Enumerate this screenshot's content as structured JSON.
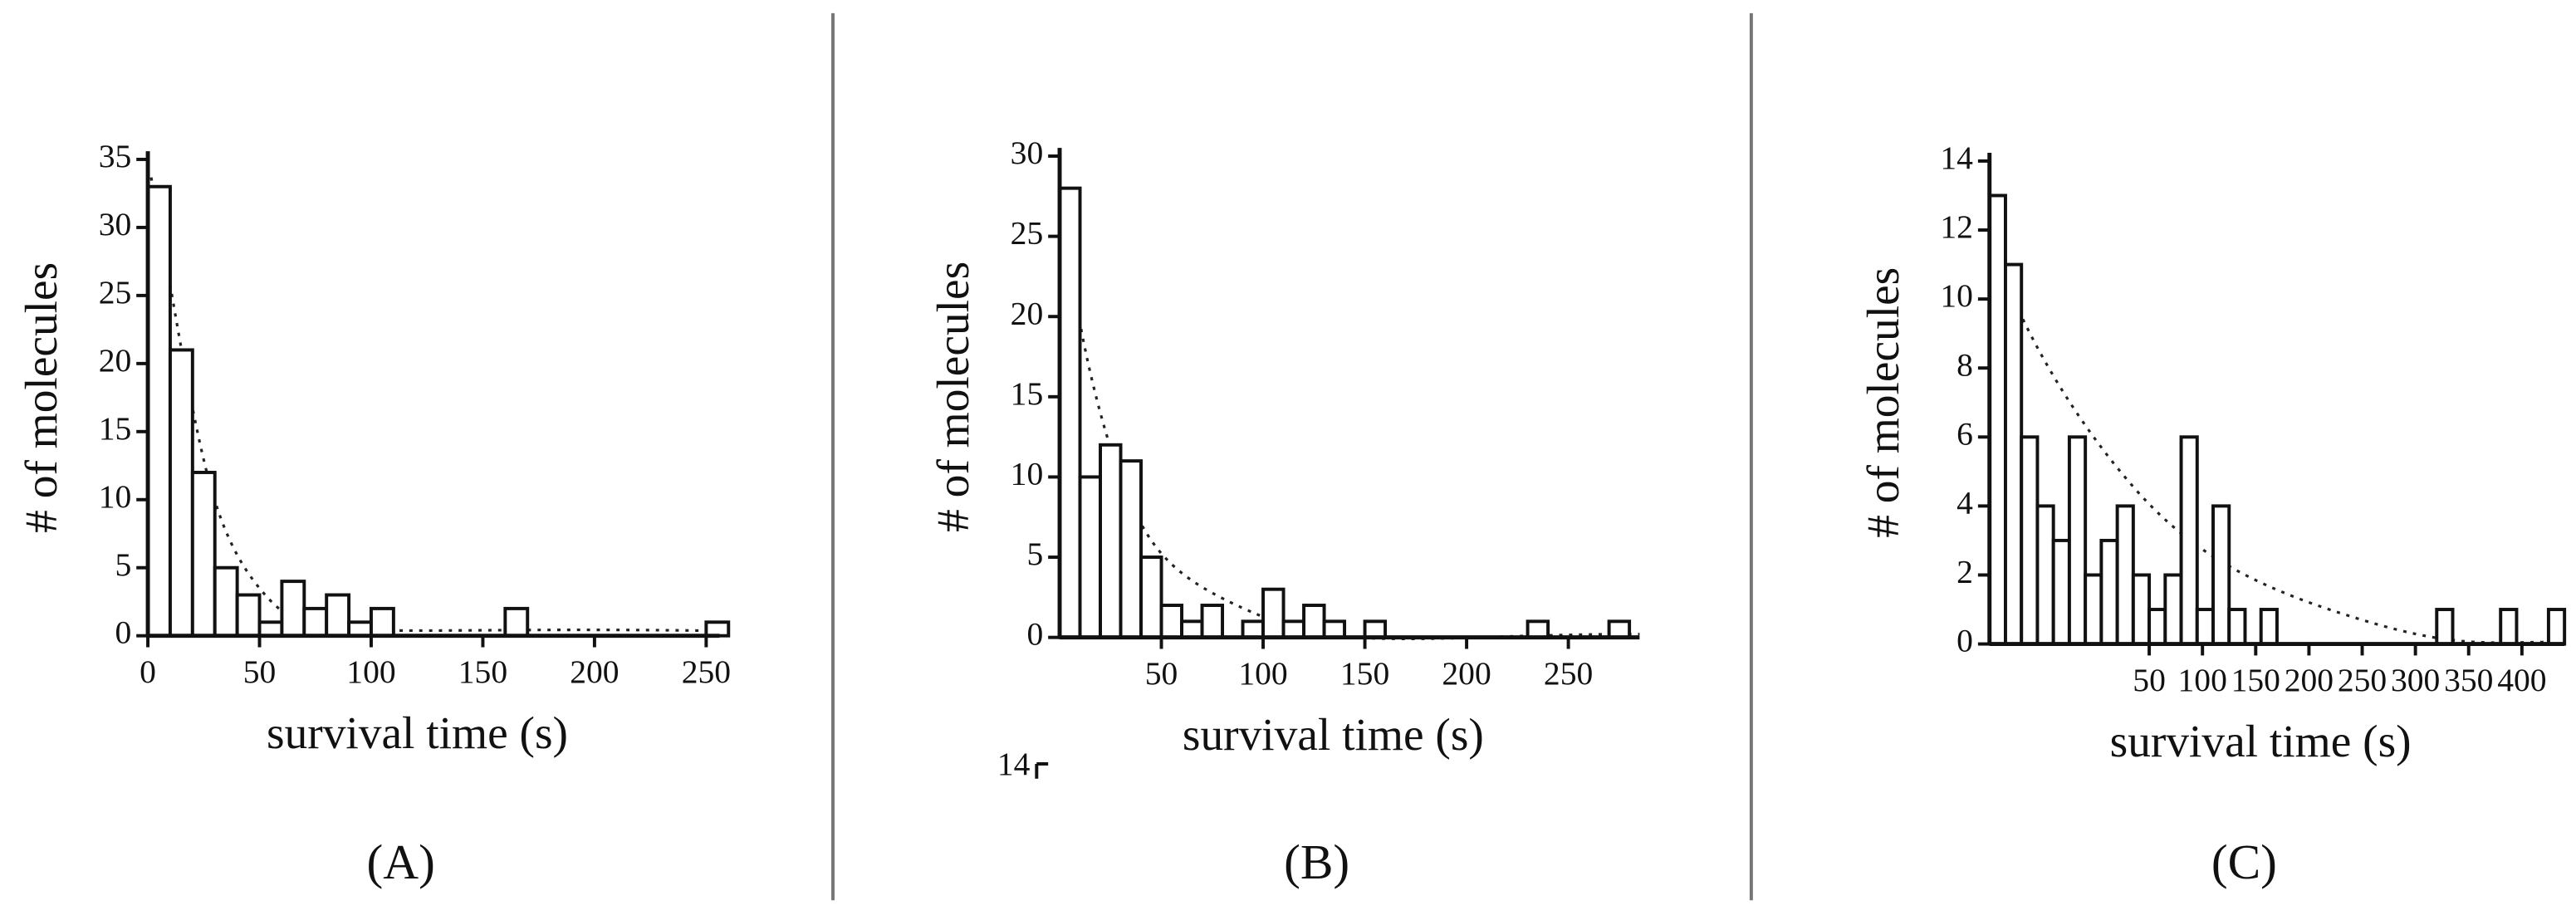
{
  "chart_data": [
    {
      "type": "histogram",
      "panel_label": "(A)",
      "x_label": "survival time (s)",
      "y_label": "# of molecules",
      "bins": [
        0,
        10,
        20,
        30,
        40,
        50,
        60,
        70,
        80,
        90,
        100,
        110,
        120,
        130,
        140,
        150,
        160,
        170,
        180,
        190,
        200,
        210,
        220,
        230,
        240,
        250,
        260
      ],
      "values": [
        33,
        21,
        12,
        5,
        3,
        1,
        4,
        2,
        3,
        1,
        2,
        0,
        0,
        0,
        0,
        0,
        2,
        0,
        0,
        0,
        0,
        0,
        0,
        0,
        0,
        1
      ],
      "color": "#ffffff",
      "xlim": [
        0,
        256
      ],
      "ylim": [
        0,
        35
      ],
      "xticks": [
        0,
        50,
        100,
        150,
        200,
        250
      ],
      "yticks": [
        0,
        5,
        10,
        15,
        20,
        25,
        30,
        35
      ]
    },
    {
      "type": "histogram",
      "panel_label": "(B)",
      "x_label": "survival time (s)",
      "y_label": "# of molecules",
      "annotation": "14",
      "bins": [
        0,
        10,
        20,
        30,
        40,
        50,
        60,
        70,
        80,
        90,
        100,
        110,
        120,
        130,
        140,
        150,
        160,
        170,
        180,
        190,
        200,
        210,
        220,
        230,
        240,
        250,
        260,
        270,
        280
      ],
      "values": [
        28,
        10,
        12,
        11,
        5,
        2,
        1,
        2,
        0,
        1,
        3,
        1,
        2,
        1,
        0,
        1,
        0,
        0,
        0,
        0,
        0,
        0,
        0,
        1,
        0,
        0,
        0,
        1
      ],
      "color": "#ffffff",
      "xlim": [
        0,
        285
      ],
      "ylim": [
        0,
        30
      ],
      "xticks": [
        50,
        100,
        150,
        200,
        250
      ],
      "yticks": [
        0,
        5,
        10,
        15,
        20,
        25,
        30
      ]
    },
    {
      "type": "histogram",
      "panel_label": "(C)",
      "x_label": "survival time (s)",
      "y_label": "# of molecules",
      "bins": [
        -100,
        -85,
        -70,
        -55,
        -40,
        -25,
        -10,
        5,
        20,
        35,
        50,
        65,
        80,
        95,
        110,
        125,
        140,
        155,
        170,
        185,
        200,
        215,
        230,
        245,
        260,
        275,
        290,
        305,
        320,
        335,
        350,
        365,
        380,
        395,
        410,
        425,
        440
      ],
      "values": [
        13,
        11,
        6,
        4,
        3,
        6,
        2,
        3,
        4,
        2,
        1,
        2,
        6,
        1,
        4,
        1,
        0,
        1,
        0,
        0,
        0,
        0,
        0,
        0,
        0,
        0,
        0,
        0,
        1,
        0,
        0,
        0,
        1,
        0,
        0,
        1
      ],
      "color": "#ffffff",
      "xlim": [
        -100,
        440
      ],
      "ylim": [
        0,
        14
      ],
      "xticks": [
        50,
        100,
        150,
        200,
        250,
        300,
        350,
        400
      ],
      "yticks": [
        0,
        2,
        4,
        6,
        8,
        10,
        12,
        14
      ]
    }
  ]
}
